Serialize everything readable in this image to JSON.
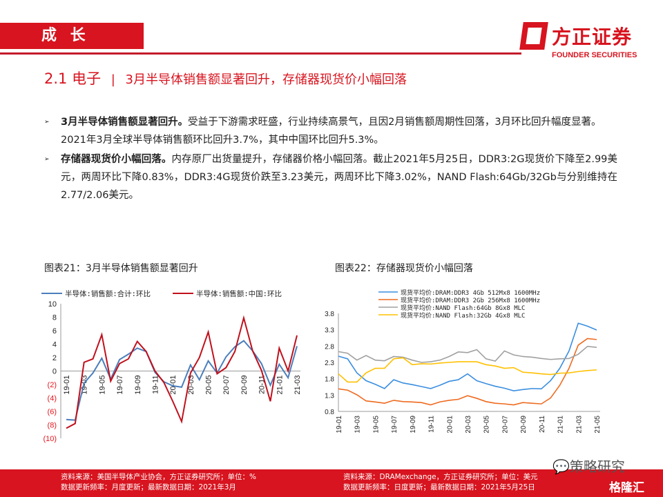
{
  "header": {
    "section": "成 长",
    "brand_cn": "方正证券",
    "brand_en": "FOUNDER SECURITIES"
  },
  "title": {
    "num": "2.1 电子",
    "sep": "|",
    "text": "3月半导体销售额显著回升，存储器现货价小幅回落"
  },
  "bullets": [
    {
      "bold": "3月半导体销售额显著回升。",
      "text": "受益于下游需求旺盛，行业持续高景气，且因2月销售额周期性回落，3月环比回升幅度显著。2021年3月全球半导体销售额环比回升3.7%，其中中国环比回升5.3%。"
    },
    {
      "bold": "存储器现货价小幅回落。",
      "text": "内存原厂出货量提升，存储器价格小幅回落。截止2021年5月25日，DDR3:2G现货价下降至2.99美元，两周环比下降0.83%，DDR3:4G现货价跌至3.23美元，两周环比下降3.02%，NAND Flash:64Gb/32Gb与分别维持在2.77/2.06美元。"
    }
  ],
  "chart_titles": [
    "图表21：3月半导体销售额显著回升",
    "图表22：存储器现货价小幅回落"
  ],
  "chart_data": [
    {
      "type": "line",
      "categories": [
        "19-01",
        "19-02",
        "19-03",
        "19-04",
        "19-05",
        "19-06",
        "19-07",
        "19-08",
        "19-09",
        "19-10",
        "19-11",
        "19-12",
        "20-01",
        "20-02",
        "20-03",
        "20-04",
        "20-05",
        "20-06",
        "20-07",
        "20-08",
        "20-09",
        "20-10",
        "20-11",
        "20-12",
        "21-01",
        "21-02",
        "21-03"
      ],
      "tick_labels": [
        "19-01",
        "19-03",
        "19-05",
        "19-07",
        "19-09",
        "19-11",
        "20-01",
        "20-03",
        "20-05",
        "20-07",
        "20-09",
        "20-11",
        "21-01",
        "21-03"
      ],
      "ylim": [
        -10,
        10
      ],
      "yticks": [
        "10",
        "8",
        "6",
        "4",
        "2",
        "0",
        "(2)",
        "(4)",
        "(6)",
        "(8)",
        "(10)"
      ],
      "negative_tick_color": "#e8141c",
      "legend": "top",
      "series": [
        {
          "name": "半导体:销售额:合计:环比",
          "color": "#4a7ebb",
          "values": [
            -7.2,
            -7.3,
            -1.8,
            -0.3,
            1.9,
            -1.2,
            1.7,
            2.5,
            3.4,
            2.9,
            -0.2,
            -1.6,
            -2.2,
            -2.4,
            0.9,
            -1.3,
            1.5,
            -0.3,
            2.1,
            3.6,
            4.5,
            3.0,
            1.1,
            -2.1,
            1.0,
            -1.0,
            3.7
          ]
        },
        {
          "name": "半导体:销售额:中国:环比",
          "color": "#c0101c",
          "values": [
            -8.5,
            -7.8,
            1.3,
            1.8,
            5.4,
            -1.5,
            1.1,
            1.8,
            4.4,
            2.9,
            0.0,
            -1.7,
            -4.5,
            -7.5,
            -0.3,
            2.0,
            5.8,
            -0.4,
            0.5,
            2.9,
            7.9,
            3.0,
            0.1,
            -4.5,
            3.4,
            0.0,
            5.3
          ]
        }
      ]
    },
    {
      "type": "line",
      "categories": [
        "19-01",
        "19-02",
        "19-03",
        "19-04",
        "19-05",
        "19-06",
        "19-07",
        "19-08",
        "19-09",
        "19-10",
        "19-11",
        "19-12",
        "20-01",
        "20-02",
        "20-03",
        "20-04",
        "20-05",
        "20-06",
        "20-07",
        "20-08",
        "20-09",
        "20-10",
        "20-11",
        "20-12",
        "21-01",
        "21-02",
        "21-03",
        "21-04",
        "21-05"
      ],
      "tick_labels": [
        "19-01",
        "19-03",
        "19-05",
        "19-07",
        "19-09",
        "19-11",
        "20-01",
        "20-03",
        "20-05",
        "20-07",
        "20-09",
        "20-11",
        "21-01",
        "21-03",
        "21-05"
      ],
      "ylim": [
        0.8,
        3.8
      ],
      "yticks": [
        "3.8",
        "3.3",
        "2.8",
        "2.3",
        "1.8",
        "1.3",
        "0.8"
      ],
      "legend": "top",
      "series": [
        {
          "name": "现货平均价:DRAM:DDR3 4Gb 512Mx8 1600MHz",
          "color": "#3a8ee0",
          "values": [
            2.49,
            2.41,
            1.98,
            1.74,
            1.63,
            1.5,
            1.77,
            1.67,
            1.62,
            1.56,
            1.5,
            1.6,
            1.72,
            1.77,
            1.95,
            1.74,
            1.65,
            1.57,
            1.51,
            1.43,
            1.47,
            1.5,
            1.49,
            1.74,
            2.12,
            2.65,
            3.5,
            3.41,
            3.29
          ]
        },
        {
          "name": "现货平均价:DRAM:DDR3 2Gb 256Mx8 1600MHz",
          "color": "#ee6a1e",
          "values": [
            1.49,
            1.45,
            1.31,
            1.12,
            1.09,
            1.05,
            1.14,
            1.1,
            1.09,
            1.07,
            1.0,
            1.09,
            1.14,
            1.17,
            1.28,
            1.2,
            1.1,
            1.05,
            1.03,
            1.0,
            1.07,
            1.05,
            1.03,
            1.21,
            1.6,
            2.12,
            2.83,
            3.03,
            3.0
          ]
        },
        {
          "name": "现货平均价:NAND Flash:64Gb 8Gx8 MLC",
          "color": "#a0a0a0",
          "values": [
            2.63,
            2.58,
            2.37,
            2.51,
            2.37,
            2.35,
            2.48,
            2.46,
            2.37,
            2.3,
            2.32,
            2.37,
            2.48,
            2.62,
            2.6,
            2.69,
            2.41,
            2.34,
            2.65,
            2.53,
            2.48,
            2.46,
            2.42,
            2.39,
            2.41,
            2.42,
            2.55,
            2.79,
            2.76
          ]
        },
        {
          "name": "现货平均价:NAND Flash:32Gb 4Gx8 MLC",
          "color": "#ffc000",
          "values": [
            1.95,
            1.7,
            1.7,
            1.98,
            2.12,
            2.12,
            2.41,
            2.44,
            2.23,
            2.26,
            2.25,
            2.28,
            2.3,
            2.32,
            2.32,
            2.32,
            2.23,
            2.19,
            2.12,
            2.14,
            2.0,
            1.98,
            1.95,
            1.93,
            1.97,
            1.98,
            2.02,
            2.05,
            2.07
          ]
        }
      ]
    }
  ],
  "footer": {
    "left": [
      "资料来源：美国半导体产业协会，方正证券研究所；单位：%",
      "数据更新频率：月度更新；最新数据日期：2021年3月"
    ],
    "right": [
      "资料来源：DRAMexchange，方正证券研究所；单位：美元",
      "数据更新频率：日度更新；最新数据日期：2021年5月25日"
    ],
    "watermark": "策略研究",
    "watermark2": "格隆汇"
  },
  "colors": {
    "brand": "#d7141f"
  }
}
